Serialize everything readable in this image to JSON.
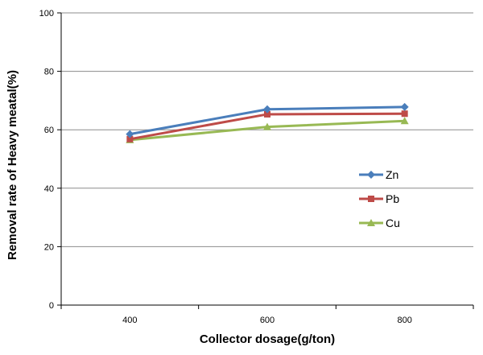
{
  "chart_data": {
    "type": "line",
    "x": [
      400,
      600,
      800
    ],
    "series": [
      {
        "name": "Zn",
        "values": [
          58.5,
          67,
          67.8
        ],
        "color": "#4a7ebb",
        "marker": "diamond"
      },
      {
        "name": "Pb",
        "values": [
          56.8,
          65.3,
          65.5
        ],
        "color": "#be4b48",
        "marker": "square"
      },
      {
        "name": "Cu",
        "values": [
          56.5,
          61,
          63
        ],
        "color": "#98b954",
        "marker": "triangle"
      }
    ],
    "xlabel": "Collector dosage(g/ton)",
    "ylabel": "Removal rate of Heavy meatal(%)",
    "xlim": [
      300,
      900
    ],
    "ylim": [
      0,
      100
    ],
    "xticks": [
      400,
      600,
      800
    ],
    "yticks": [
      0,
      20,
      40,
      60,
      80,
      100
    ],
    "grid": "horizontal",
    "legend_position": "right-middle"
  }
}
